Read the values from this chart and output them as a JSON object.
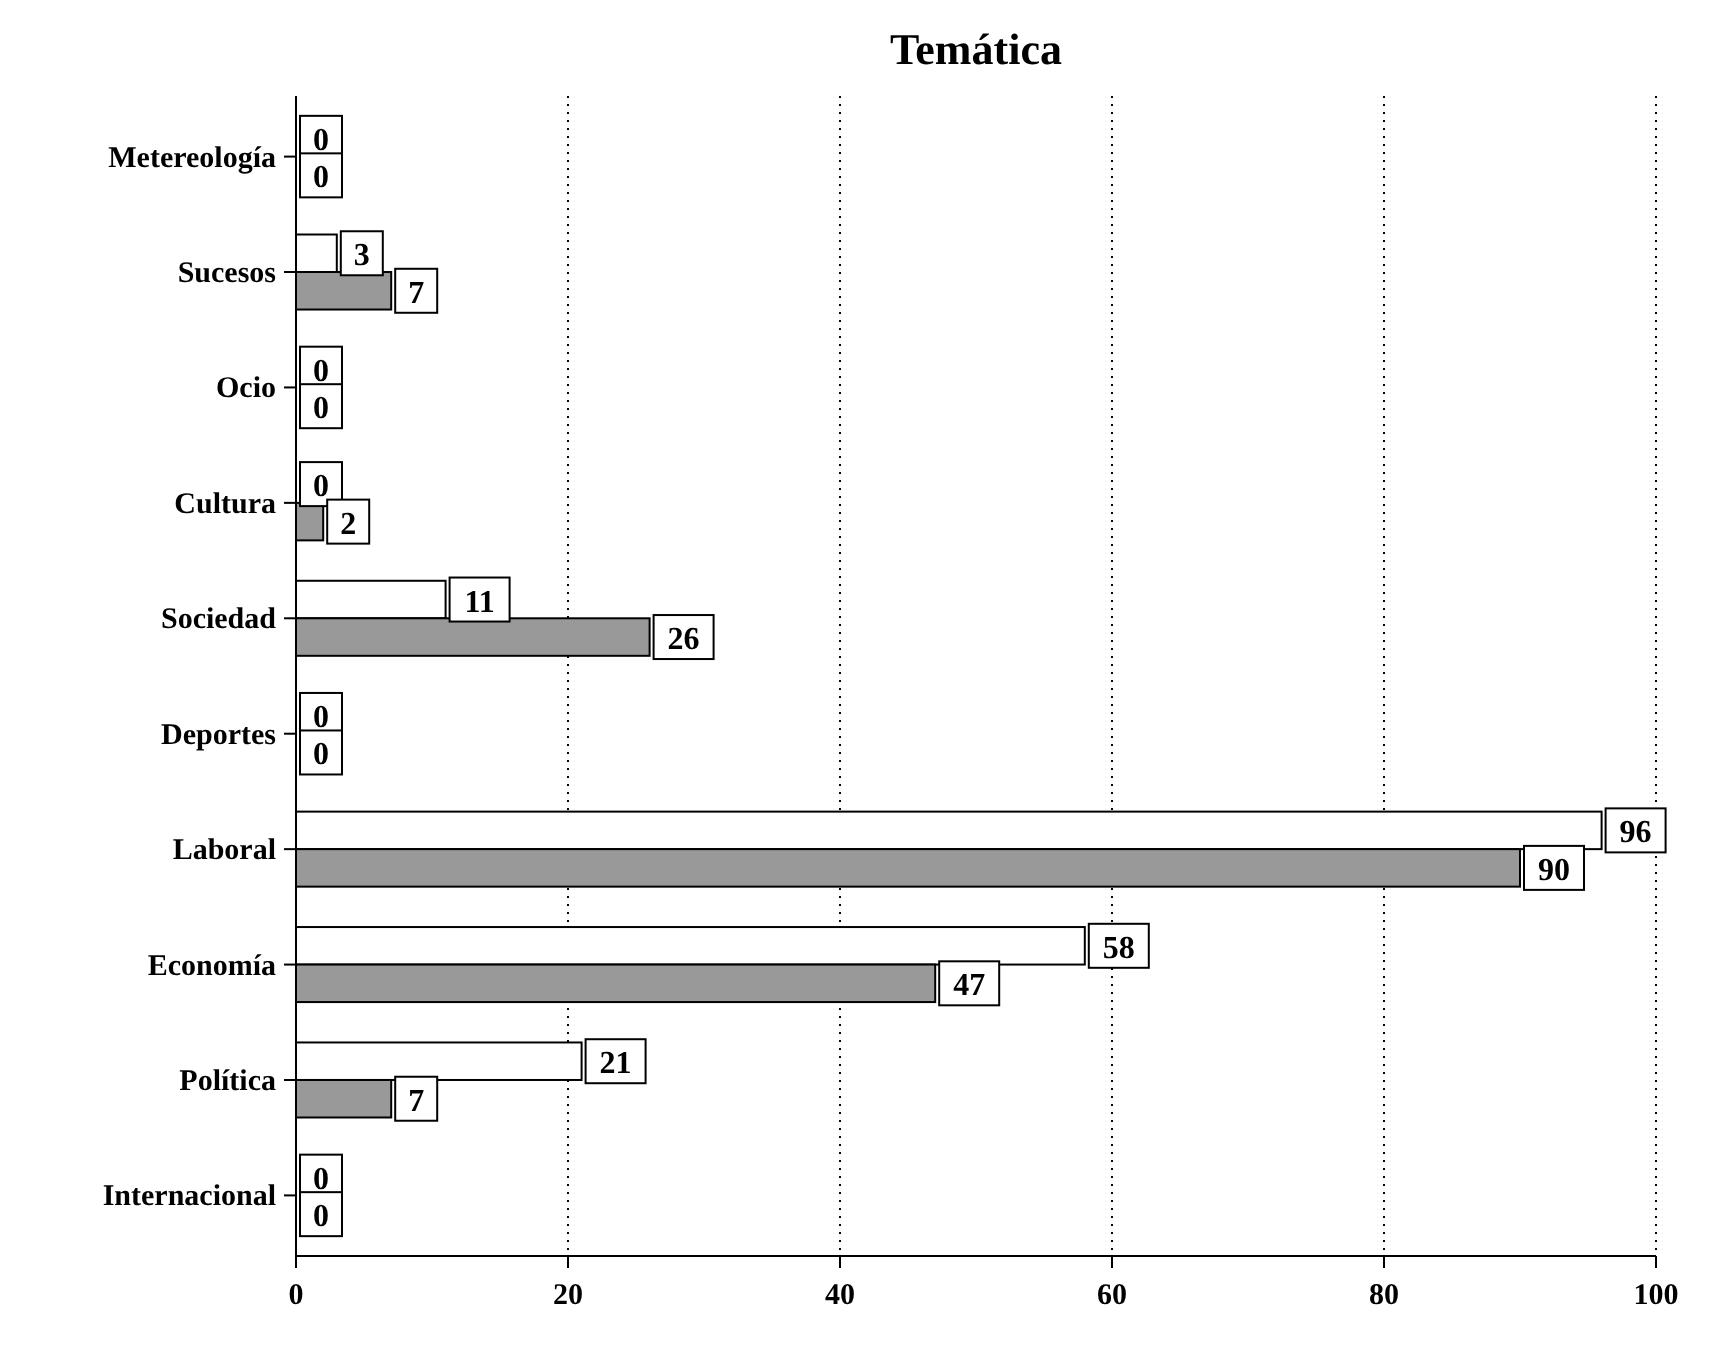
{
  "chart_data": {
    "type": "bar",
    "title": "Temática",
    "orientation": "horizontal",
    "categories": [
      "Metereología",
      "Sucesos",
      "Ocio",
      "Cultura",
      "Sociedad",
      "Deportes",
      "Laboral",
      "Economía",
      "Política",
      "Internacional"
    ],
    "series": [
      {
        "color": "#ffffff",
        "values": [
          0,
          3,
          0,
          0,
          11,
          0,
          96,
          58,
          21,
          0
        ]
      },
      {
        "color": "#999999",
        "values": [
          0,
          7,
          0,
          2,
          26,
          0,
          90,
          47,
          7,
          0
        ]
      }
    ],
    "xlim": [
      0,
      100
    ],
    "xticks": [
      0,
      20,
      40,
      60,
      80,
      100
    ],
    "grid": "x",
    "data_labels": true
  }
}
